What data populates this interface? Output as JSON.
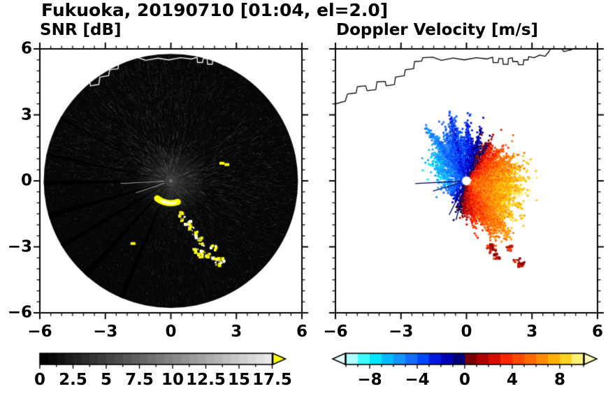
{
  "title": "Fukuoka, 20190710 [01:04, el=2.0]",
  "panels": [
    {
      "subtitle": "SNR [dB]"
    },
    {
      "subtitle": "Doppler Velocity [m/s]"
    }
  ],
  "axes": {
    "x_tick_labels": [
      "−6",
      "−3",
      "0",
      "3",
      "6"
    ],
    "y_tick_labels": [
      "6",
      "3",
      "0",
      "−3",
      "−6"
    ],
    "minor_tick_step": 0.5
  },
  "colorbars": [
    {
      "tick_labels": [
        "0",
        "2.5",
        "5",
        "7.5",
        "10",
        "12.5",
        "15",
        "17.5"
      ],
      "min": 0,
      "max": 17.5,
      "type": "grayscale",
      "over_color": "#ffff00"
    },
    {
      "tick_labels": [
        "−8",
        "−4",
        "0",
        "4",
        "8"
      ],
      "min": -10,
      "max": 10,
      "type": "cyan-blue-navy / darkred-red-orange-yellow"
    }
  ],
  "coastline": [
    [
      [
        -6,
        3.5
      ],
      [
        -5.55,
        3.62
      ],
      [
        -5.45,
        3.95
      ],
      [
        -5.05,
        4.0
      ],
      [
        -5.0,
        4.28
      ],
      [
        -4.62,
        4.32
      ],
      [
        -4.55,
        4.1
      ],
      [
        -4.15,
        4.15
      ],
      [
        -4.1,
        4.5
      ],
      [
        -3.72,
        4.52
      ],
      [
        -3.68,
        4.32
      ],
      [
        -3.3,
        4.38
      ],
      [
        -3.25,
        4.72
      ],
      [
        -2.85,
        4.78
      ],
      [
        -2.8,
        5.05
      ],
      [
        -2.42,
        5.1
      ],
      [
        -2.38,
        5.42
      ],
      [
        -2.05,
        5.45
      ],
      [
        -2.0,
        5.6
      ],
      [
        -1.55,
        5.62
      ],
      [
        -1.15,
        5.48
      ],
      [
        -0.6,
        5.58
      ],
      [
        -0.1,
        5.5
      ],
      [
        0.45,
        5.6
      ],
      [
        0.95,
        5.54
      ],
      [
        1.2,
        5.62
      ],
      [
        1.22,
        5.38
      ],
      [
        1.45,
        5.38
      ],
      [
        1.48,
        5.56
      ],
      [
        1.66,
        5.56
      ],
      [
        1.68,
        5.3
      ],
      [
        1.9,
        5.3
      ],
      [
        1.92,
        5.56
      ],
      [
        2.1,
        5.6
      ],
      [
        2.12,
        5.42
      ],
      [
        2.35,
        5.42
      ],
      [
        2.38,
        5.28
      ],
      [
        2.6,
        5.28
      ],
      [
        2.62,
        5.5
      ],
      [
        2.82,
        5.5
      ],
      [
        2.85,
        5.65
      ],
      [
        3.1,
        5.6
      ],
      [
        3.35,
        5.72
      ],
      [
        3.6,
        5.66
      ],
      [
        3.78,
        5.88
      ],
      [
        3.92,
        6.12
      ]
    ],
    [
      [
        4.3,
        6.12
      ],
      [
        4.45,
        5.88
      ],
      [
        4.8,
        5.96
      ],
      [
        5.05,
        6.12
      ]
    ]
  ],
  "chart_data": [
    {
      "type": "heatmap",
      "title": "SNR [dB]",
      "xlabel": "",
      "ylabel": "",
      "xlim": [
        -6,
        6
      ],
      "ylim": [
        -6,
        6
      ],
      "xticks": [
        -6,
        -3,
        0,
        3,
        6
      ],
      "yticks": [
        -6,
        -3,
        0,
        3,
        6
      ],
      "colorbar": {
        "min": 0,
        "max": 17.5,
        "ticks": [
          0,
          2.5,
          5,
          7.5,
          10,
          12.5,
          15,
          17.5
        ],
        "colormap": "grayscale",
        "over_color": "#ffff00"
      },
      "scan": {
        "radius": 5.82,
        "description": "PPI scan disk filled with weak (0-6 dB) noise echoes, brighter haze NW of the radar, beam-blockage spokes toward the W-SW, strong yellow (>17.5 dB) arc about 1 km S of the radar, broken yellow/white echo trail extending SE to (2.3,-3.8), white coastline visible along the top of the disk.",
        "brightness_envelope": [
          [
            0,
            1.15
          ],
          [
            30,
            1.2
          ],
          [
            60,
            0.95
          ],
          [
            90,
            1.2
          ],
          [
            110,
            1.55
          ],
          [
            140,
            1.6
          ],
          [
            165,
            1.05
          ],
          [
            185,
            0.55
          ],
          [
            210,
            0.45
          ],
          [
            240,
            0.5
          ],
          [
            265,
            0.7
          ],
          [
            290,
            0.85
          ],
          [
            320,
            0.95
          ],
          [
            345,
            1.15
          ],
          [
            360,
            1.15
          ]
        ],
        "blockage_spokes": [
          [
            150,
            0.9
          ],
          [
            168,
            1.3
          ],
          [
            181,
            2.0
          ],
          [
            196,
            2.4
          ],
          [
            211,
            2.0
          ],
          [
            228,
            2.6
          ],
          [
            247,
            2.2
          ]
        ],
        "residual_rays": [
          [
            183,
            2.3
          ],
          [
            199,
            1.7
          ]
        ],
        "strong_color": "#ffff00",
        "strong_arc": {
          "radius": 1.02,
          "start_deg": 232,
          "end_deg": 288
        },
        "echo_cells": [
          [
            0.42,
            -1.5
          ],
          [
            0.6,
            -1.72
          ],
          [
            0.78,
            -1.95
          ],
          [
            0.95,
            -2.18
          ],
          [
            1.12,
            -2.42
          ],
          [
            1.28,
            -2.65
          ],
          [
            1.42,
            -2.9
          ],
          [
            1.18,
            -3.15
          ],
          [
            1.5,
            -3.2
          ],
          [
            1.75,
            -3.42
          ],
          [
            1.95,
            -3.05
          ],
          [
            2.0,
            -3.52
          ],
          [
            2.18,
            -3.78
          ],
          [
            2.3,
            -3.6
          ],
          [
            1.35,
            -3.38
          ]
        ],
        "small_echoes": [
          [
            2.32,
            0.8
          ],
          [
            2.55,
            0.74
          ],
          [
            -1.75,
            -2.85
          ]
        ]
      }
    },
    {
      "type": "heatmap",
      "title": "Doppler Velocity [m/s]",
      "xlabel": "",
      "ylabel": "",
      "xlim": [
        -6,
        6
      ],
      "ylim": [
        -6,
        6
      ],
      "xticks": [
        -6,
        -3,
        0,
        3,
        6
      ],
      "yticks": [
        -6,
        -3,
        0,
        3,
        6
      ],
      "colorbar": {
        "min": -10,
        "max": 10,
        "ticks": [
          -8,
          -4,
          0,
          4,
          8
        ]
      },
      "description": "Approaching flow (blue, -3 to -8 m/s) NW-W of the radar; receding flow (red-orange, +3 to +9 m/s) E-SE of the radar; echo-free blockage wedges to the SW with thin navy residual beams; isolated dark-red cells near (1.2,-3.3) and (2.4,-3.7); black coastline along the top.",
      "colormap_stops": [
        [
          -10,
          "#eaffff"
        ],
        [
          -8,
          "#00ffff"
        ],
        [
          -6.5,
          "#00baff"
        ],
        [
          -5,
          "#1e7fff"
        ],
        [
          -3.5,
          "#0048ff"
        ],
        [
          -2,
          "#0000d0"
        ],
        [
          -0.7,
          "#000088"
        ],
        [
          -0.05,
          "#000052"
        ],
        [
          0.05,
          "#550000"
        ],
        [
          0.7,
          "#8b0000"
        ],
        [
          2,
          "#c40000"
        ],
        [
          3.5,
          "#ff2800"
        ],
        [
          5,
          "#ff5a00"
        ],
        [
          6.5,
          "#ff8c00"
        ],
        [
          8,
          "#ffc100"
        ],
        [
          9.2,
          "#ffe94d"
        ],
        [
          10,
          "#ffffc0"
        ]
      ],
      "extent_envelope": [
        [
          0,
          2.6
        ],
        [
          15,
          2.5
        ],
        [
          35,
          2.3
        ],
        [
          55,
          2.0
        ],
        [
          70,
          1.75
        ],
        [
          85,
          1.9
        ],
        [
          95,
          2.1
        ],
        [
          110,
          2.35
        ],
        [
          125,
          2.25
        ],
        [
          140,
          2.0
        ],
        [
          155,
          1.85
        ],
        [
          170,
          1.4
        ],
        [
          182,
          1.3
        ],
        [
          195,
          1.35
        ],
        [
          210,
          1.15
        ],
        [
          225,
          0.95
        ],
        [
          240,
          1.1
        ],
        [
          255,
          1.5
        ],
        [
          270,
          1.8
        ],
        [
          283,
          2.15
        ],
        [
          295,
          2.55
        ],
        [
          308,
          2.75
        ],
        [
          322,
          2.65
        ],
        [
          340,
          2.6
        ],
        [
          360,
          2.6
        ]
      ],
      "edge_spikes": [
        [
          61,
          0.35,
          1.5
        ],
        [
          75,
          0.45,
          2
        ],
        [
          89,
          0.5,
          2
        ],
        [
          104,
          0.55,
          2.5
        ],
        [
          128,
          0.3,
          3
        ],
        [
          303,
          0.2,
          5
        ]
      ],
      "residual_lines": [
        [
          183,
          2.35
        ],
        [
          197,
          1.6
        ],
        [
          243,
          1.75
        ],
        [
          255,
          1.85
        ]
      ],
      "residual_color": "#000066",
      "detached_cells": [
        [
          1.2,
          -3.25
        ],
        [
          1.38,
          -3.45
        ],
        [
          2.3,
          -3.65
        ],
        [
          2.52,
          -3.8
        ],
        [
          1.95,
          -3.05
        ],
        [
          1.08,
          -3.0
        ]
      ]
    }
  ]
}
